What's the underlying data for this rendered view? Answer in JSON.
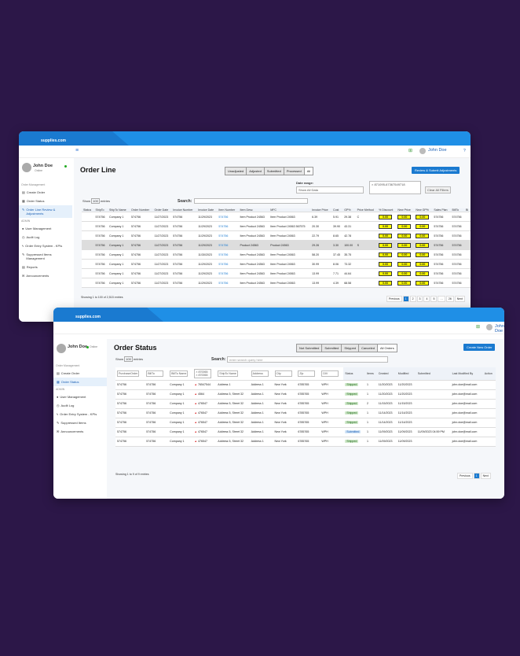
{
  "brand": "supplies.com",
  "user": {
    "name": "John Doe",
    "status": "Online",
    "help": "?"
  },
  "w1": {
    "title": "Order Line",
    "segments": [
      "Unadjusted",
      "Adjusted",
      "Submitted",
      "Processed",
      "All"
    ],
    "cta": "Review & Submit Adjustments",
    "date_label": "Date range:",
    "date_value": "Show All Data",
    "filter_chip": "× 871095-67367549718",
    "clear": "Clear All Filters",
    "show_label": "Show",
    "show_value": "100",
    "entries": "entries",
    "search_label": "Search:",
    "sidebar": {
      "section1": "Order Management",
      "items": [
        "Create Order",
        "Order Status",
        "Order Line Review & Adjustments"
      ],
      "section2": "ADMIN",
      "items2": [
        "User Management",
        "Audit Log",
        "Order Entry System - KPIs",
        "Suppressed Items Management",
        "Reports",
        "Announcements"
      ]
    },
    "columns": [
      "Status",
      "ShipTo",
      "ShipTo Name",
      "Order Number",
      "Order Date",
      "Invoice Number",
      "Invoice Date",
      "Item Number",
      "Item Desc",
      "MFC",
      "Invoice Price",
      "Cost",
      "GP%",
      "Price Method",
      "% Discount",
      "New Price",
      "New GP%",
      "Sales Plan",
      "BillTo",
      "Bi"
    ],
    "rows": [
      [
        "",
        "574756",
        "Company 1",
        "574756",
        "11/27/2023",
        "574756",
        "11/29/2023",
        "574756",
        "Item Product 24563",
        "Item Product 24563",
        "6.39",
        "5.91",
        "29.38",
        "C",
        "0.00",
        "0.00",
        "0.00",
        "574756",
        "574756"
      ],
      [
        "",
        "574756",
        "Company 1",
        "574756",
        "11/27/2023",
        "574756",
        "11/29/2023",
        "574756",
        "Item Product 24563",
        "Item Product 24563 567575",
        "20.30",
        "39.90",
        "43.31",
        "",
        "0.00",
        "0.00",
        "0.00",
        "574756",
        "574756"
      ],
      [
        "",
        "574756",
        "Company 1",
        "574756",
        "11/27/2023",
        "574756",
        "11/29/2023",
        "574756",
        "Item Product 24563",
        "Item Product 24563",
        "22.79",
        "8.65",
        "42.78",
        "",
        "0.00",
        "0.00",
        "0.00",
        "574756",
        "574756"
      ],
      [
        "",
        "574756",
        "Company 1",
        "574756",
        "11/27/2023",
        "574756",
        "11/29/2023",
        "574756",
        "Product 24563",
        "Product 24563",
        "29.26",
        "3.30",
        "100.00",
        "S",
        "0.00",
        "0.00",
        "0.00",
        "574756",
        "574756"
      ],
      [
        "",
        "574756",
        "Company 1",
        "574756",
        "11/27/2023",
        "574756",
        "11/30/2023",
        "574756",
        "Item Product 24563",
        "Item Product 24563",
        "58.20",
        "37.45",
        "35.75",
        "",
        "0.00",
        "0.00",
        "0.00",
        "574756",
        "574756"
      ],
      [
        "",
        "574756",
        "Company 1",
        "574756",
        "11/27/2023",
        "574756",
        "11/29/2023",
        "574756",
        "Item Product 24563",
        "Item Product 24563",
        "30.99",
        "8.06",
        "73.32",
        "",
        "0.00",
        "0.00",
        "0.00",
        "574756",
        "574756"
      ],
      [
        "",
        "574756",
        "Company 1",
        "574756",
        "11/27/2023",
        "574756",
        "11/29/2023",
        "574756",
        "Item Product 24563",
        "Item Product 24563",
        "13.99",
        "7.71",
        "44.64",
        "",
        "0.00",
        "0.00",
        "0.00",
        "574756",
        "574756"
      ],
      [
        "",
        "574756",
        "Company 1",
        "574756",
        "11/27/2023",
        "574756",
        "11/29/2023",
        "574756",
        "Item Product 24563",
        "Item Product 24563",
        "13.99",
        "4.39",
        "68.58",
        "",
        "0.00",
        "0.00",
        "0.00",
        "574756",
        "574756"
      ]
    ],
    "info": "Showing 1 to 100 of 2,515 entries",
    "pager": [
      "Previous",
      "1",
      "2",
      "3",
      "4",
      "5",
      "…",
      "26",
      "Next"
    ]
  },
  "w2": {
    "title": "Order Status",
    "segments": [
      "Not Submitted",
      "Submitted",
      "Shipped",
      "Canceled",
      "All Orders"
    ],
    "cta": "Create New Order",
    "show_label": "Show",
    "show_value": "100",
    "entries": "entries",
    "search_label": "Search:",
    "search_placeholder": "enter search query here",
    "sidebar": {
      "section1": "Order Management",
      "items": [
        "Create Order",
        "Order Status"
      ],
      "section2": "ADMIN",
      "items2": [
        "User Management",
        "Audit Log",
        "Order Entry System - KPIs",
        "Suppressed Items",
        "Announcements"
      ]
    },
    "filters": [
      "PurchaseOrder",
      "BillTo",
      "BillTo Name",
      "× 870065\n× 870065",
      "ShipTo Name",
      "Address",
      "City",
      "Zip",
      "DIV"
    ],
    "columns": [
      "",
      "",
      "",
      "",
      "",
      "",
      "",
      "",
      "",
      "Status",
      "Items",
      "Created",
      "Modified",
      "Submitted",
      "Last Modified By",
      "Action"
    ],
    "rows": [
      [
        "574756",
        "574756",
        "Company 1",
        "76547544",
        "Address 1",
        "Address 1",
        "New York",
        "6785765",
        "WPH",
        "Shipped",
        "1",
        "11/20/2023",
        "11/20/2023",
        "",
        "john.doe@mail.com"
      ],
      [
        "574756",
        "574756",
        "Company 1",
        "4564",
        "Address 5, Street 32",
        "Address 1",
        "New York",
        "6785765",
        "WPH",
        "Shipped",
        "1",
        "11/20/2023",
        "11/20/2023",
        "",
        "john.doe@mail.com"
      ],
      [
        "574756",
        "574756",
        "Company 1",
        "476547",
        "Address 5, Street 32",
        "Address 1",
        "New York",
        "6785765",
        "WPH",
        "Shipped",
        "2",
        "11/15/2023",
        "11/15/2023",
        "",
        "john.doe@mail.com"
      ],
      [
        "574756",
        "574756",
        "Company 1",
        "476547",
        "Address 5, Street 32",
        "Address 1",
        "New York",
        "6785765",
        "WPH",
        "Shipped",
        "1",
        "11/14/2023",
        "11/14/2023",
        "",
        "john.doe@mail.com"
      ],
      [
        "574756",
        "574756",
        "Company 1",
        "476547",
        "Address 5, Street 32",
        "Address 1",
        "New York",
        "6785765",
        "WPH",
        "Shipped",
        "1",
        "11/14/2023",
        "11/14/2023",
        "",
        "john.doe@mail.com"
      ],
      [
        "574756",
        "574756",
        "Company 1",
        "476547",
        "Address 5, Street 32",
        "Address 1",
        "New York",
        "6785765",
        "WPH",
        "Submitted",
        "1",
        "11/09/2023",
        "11/09/2023",
        "11/09/2023 04:59 PM",
        "john.doe@mail.com"
      ],
      [
        "574756",
        "574756",
        "Company 1",
        "476547",
        "Address 5, Street 32",
        "Address 1",
        "New York",
        "6785765",
        "WPH",
        "Shipped",
        "1",
        "11/09/2023",
        "11/09/2023",
        "",
        "john.doe@mail.com"
      ]
    ],
    "info": "Showing 1 to 9 of 9 entries",
    "pager": [
      "Previous",
      "1",
      "Next"
    ]
  }
}
